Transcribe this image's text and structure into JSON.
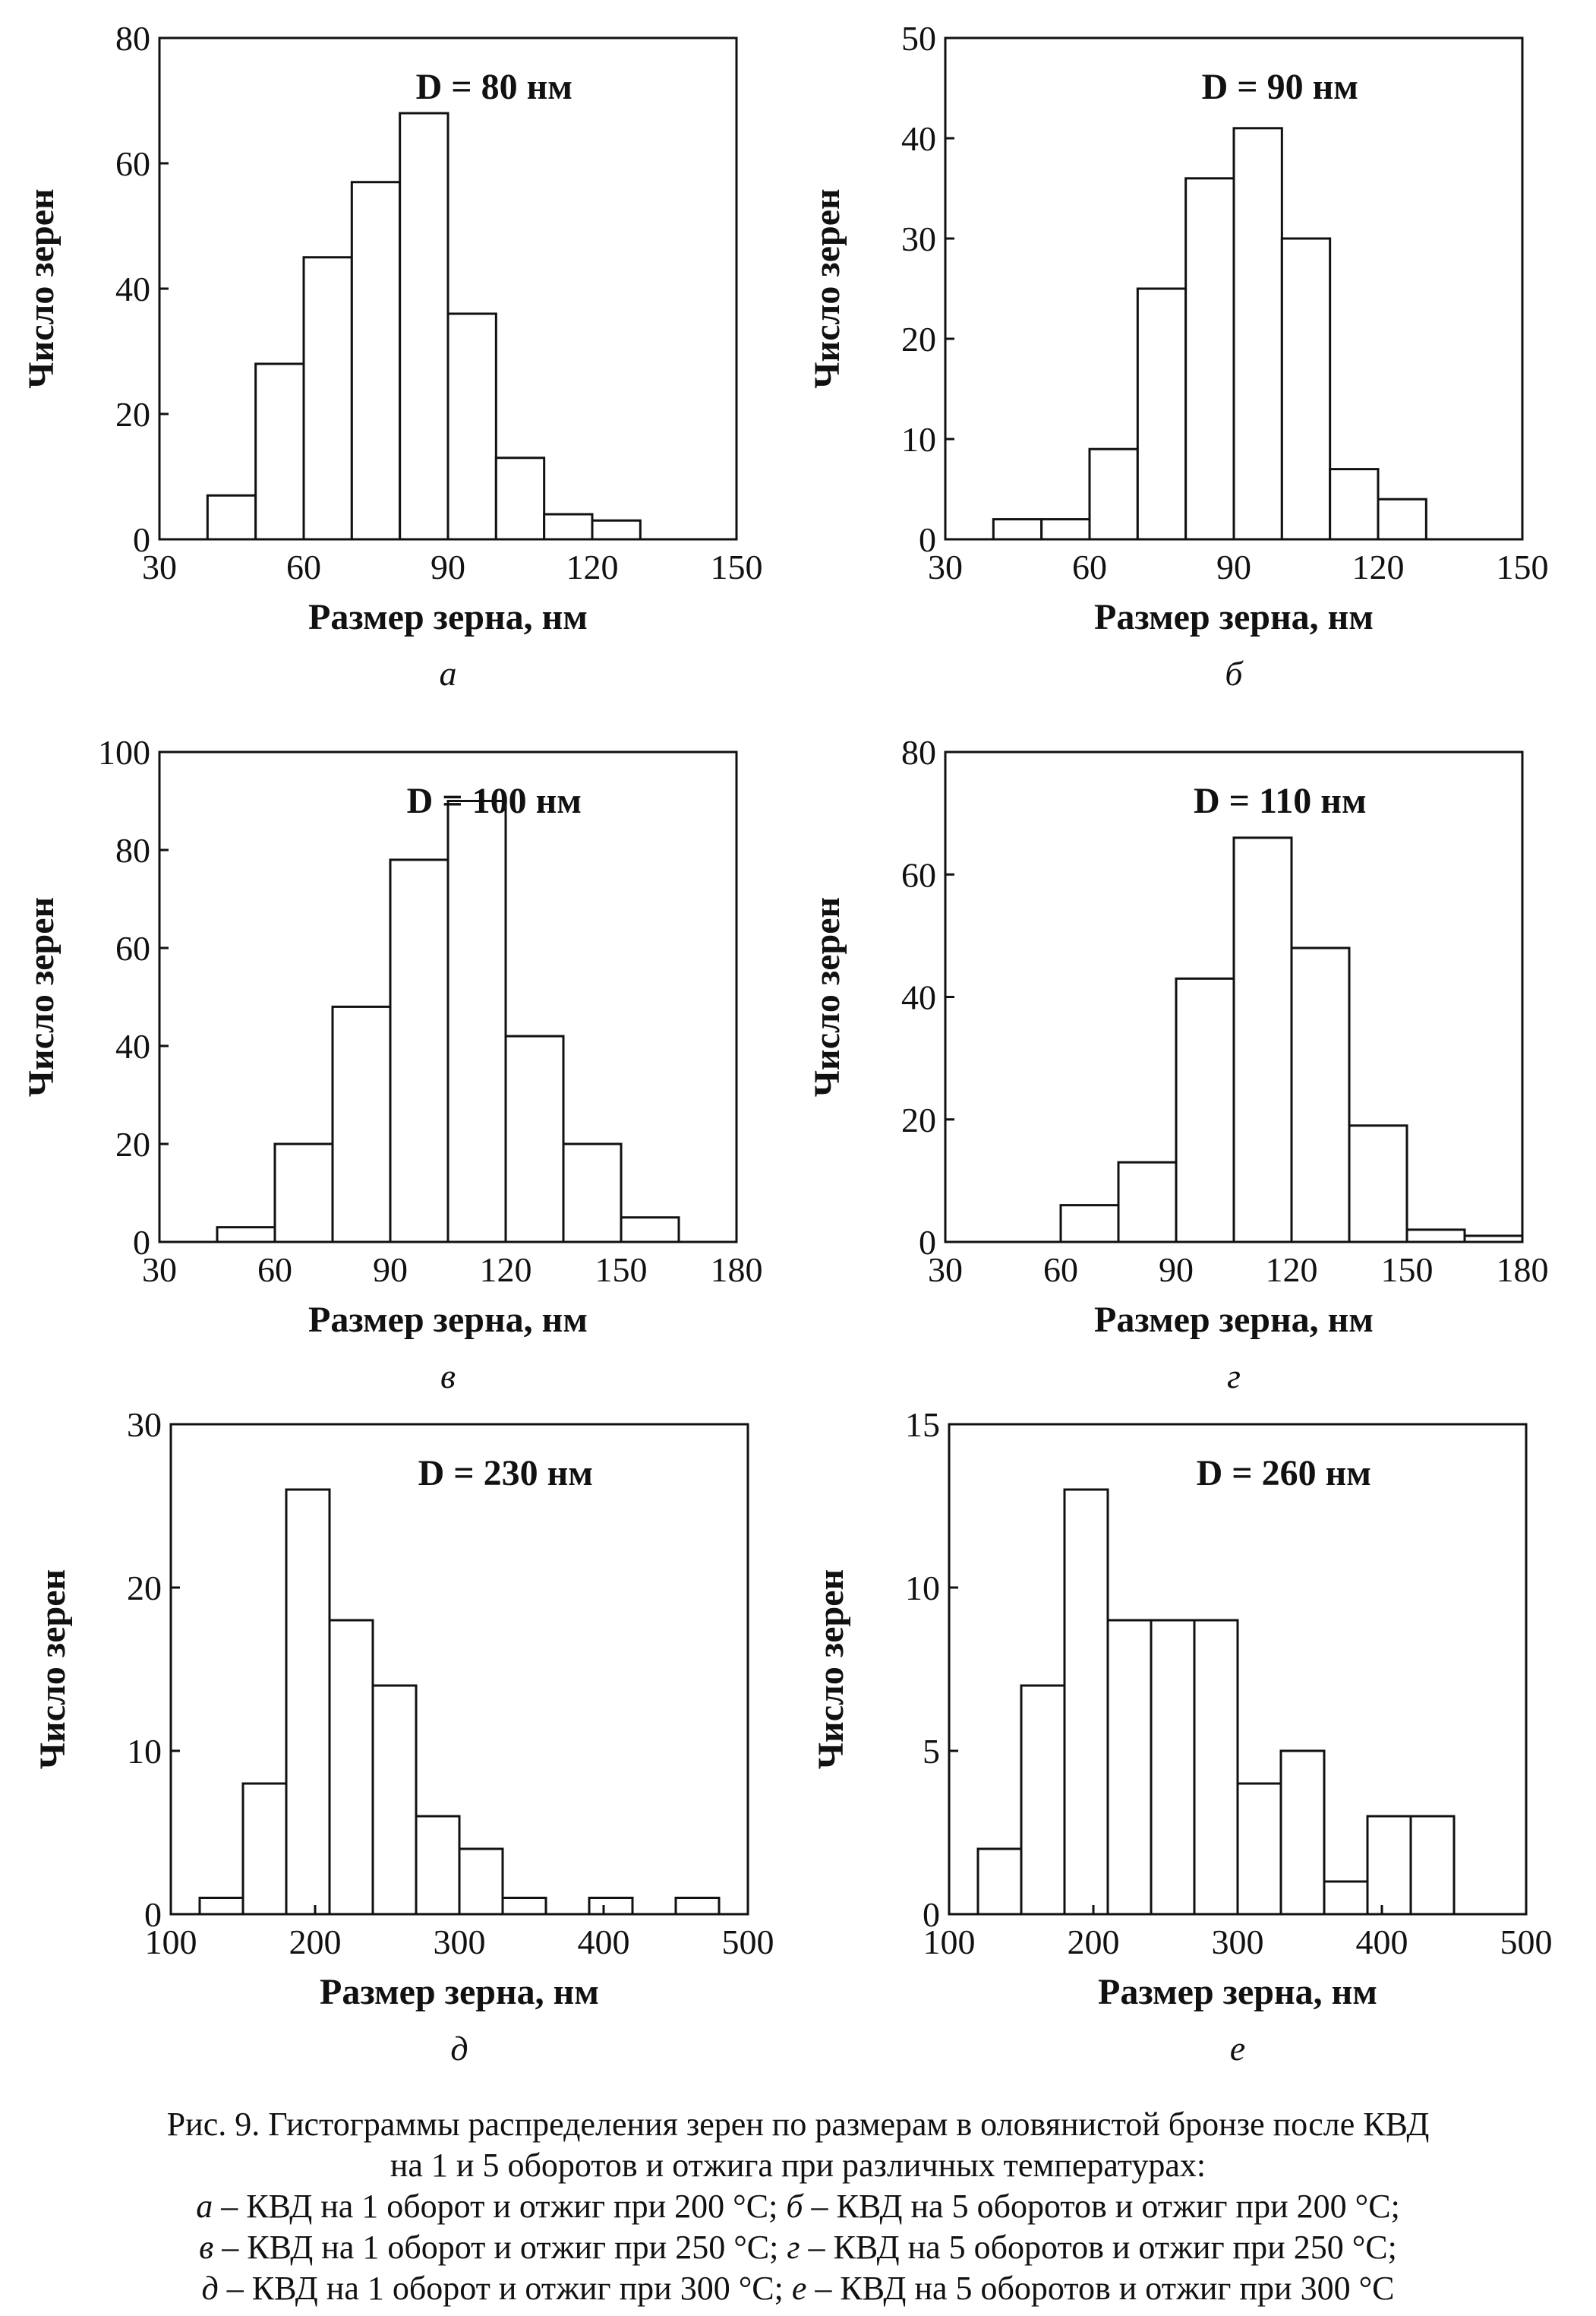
{
  "chart_data": [
    {
      "type": "bar",
      "panel": "а",
      "annotation": "D = 80 нм",
      "xlabel": "Размер зерна, нм",
      "ylabel": "Число зерен",
      "bin_width": 10,
      "bin_starts": [
        40,
        50,
        60,
        70,
        80,
        90,
        100,
        110,
        120
      ],
      "values": [
        7,
        28,
        45,
        57,
        68,
        36,
        13,
        4,
        3
      ],
      "xlim": [
        30,
        150
      ],
      "ylim": [
        0,
        80
      ],
      "xticks": [
        30,
        60,
        90,
        120,
        150
      ],
      "yticks": [
        0,
        20,
        40,
        60,
        80
      ]
    },
    {
      "type": "bar",
      "panel": "б",
      "annotation": "D = 90 нм",
      "xlabel": "Размер зерна, нм",
      "ylabel": "Число зерен",
      "bin_width": 10,
      "bin_starts": [
        40,
        50,
        60,
        70,
        80,
        90,
        100,
        110,
        120
      ],
      "values": [
        2,
        2,
        9,
        25,
        36,
        41,
        30,
        7,
        4
      ],
      "xlim": [
        30,
        150
      ],
      "ylim": [
        0,
        50
      ],
      "xticks": [
        30,
        60,
        90,
        120,
        150
      ],
      "yticks": [
        0,
        10,
        20,
        30,
        40,
        50
      ]
    },
    {
      "type": "bar",
      "panel": "в",
      "annotation": "D = 100 нм",
      "xlabel": "Размер зерна, нм",
      "ylabel": "Число зерен",
      "bin_width": 15,
      "bin_starts": [
        45,
        60,
        75,
        90,
        105,
        120,
        135,
        150
      ],
      "values": [
        3,
        20,
        48,
        78,
        90,
        42,
        20,
        5
      ],
      "xlim": [
        30,
        180
      ],
      "ylim": [
        0,
        100
      ],
      "xticks": [
        30,
        60,
        90,
        120,
        150,
        180
      ],
      "yticks": [
        0,
        20,
        40,
        60,
        80,
        100
      ]
    },
    {
      "type": "bar",
      "panel": "г",
      "annotation": "D = 110 нм",
      "xlabel": "Размер зерна, нм",
      "ylabel": "Число зерен",
      "bin_width": 15,
      "bin_starts": [
        60,
        75,
        90,
        105,
        120,
        135,
        150,
        165
      ],
      "values": [
        6,
        13,
        43,
        66,
        48,
        19,
        2,
        1
      ],
      "xlim": [
        30,
        180
      ],
      "ylim": [
        0,
        80
      ],
      "xticks": [
        30,
        60,
        90,
        120,
        150,
        180
      ],
      "yticks": [
        0,
        20,
        40,
        60,
        80
      ]
    },
    {
      "type": "bar",
      "panel": "д",
      "annotation": "D = 230 нм",
      "xlabel": "Размер зерна, нм",
      "ylabel": "Число зерен",
      "bin_width": 30,
      "bin_starts": [
        120,
        150,
        180,
        210,
        240,
        270,
        300,
        330,
        360,
        390,
        420,
        450
      ],
      "values": [
        1,
        8,
        26,
        18,
        14,
        6,
        4,
        1,
        0,
        1,
        0,
        1
      ],
      "xlim": [
        100,
        500
      ],
      "ylim": [
        0,
        30
      ],
      "xticks": [
        100,
        200,
        300,
        400,
        500
      ],
      "yticks": [
        0,
        10,
        20,
        30
      ]
    },
    {
      "type": "bar",
      "panel": "е",
      "annotation": "D = 260 нм",
      "xlabel": "Размер зерна, нм",
      "ylabel": "Число зерен",
      "bin_width": 30,
      "bin_starts": [
        120,
        150,
        180,
        210,
        240,
        270,
        300,
        330,
        360,
        390,
        420
      ],
      "values": [
        2,
        7,
        13,
        9,
        9,
        9,
        4,
        5,
        1,
        3,
        3
      ],
      "xlim": [
        100,
        500
      ],
      "ylim": [
        0,
        15
      ],
      "xticks": [
        100,
        200,
        300,
        400,
        500
      ],
      "yticks": [
        0,
        5,
        10,
        15
      ]
    }
  ],
  "caption": {
    "line1": "Рис. 9. Гистограммы распределения зерен по размерам в оловянистой бронзе после КВД",
    "line2": "на 1 и 5 оборотов и отжига при различных температурах:",
    "items": [
      {
        "letter": "а",
        "text": " – КВД на 1 оборот и отжиг при 200 °С; "
      },
      {
        "letter": "б",
        "text": " – КВД на 5 оборотов и отжиг при 200 °С;"
      },
      {
        "letter": "в",
        "text": " – КВД на 1 оборот и отжиг при 250 °С; "
      },
      {
        "letter": "г",
        "text": " – КВД на 5 оборотов и отжиг при 250 °С;"
      },
      {
        "letter": "д",
        "text": " – КВД на 1 оборот и отжиг при 300 °С; "
      },
      {
        "letter": "е",
        "text": " – КВД на 5 оборотов и отжиг при 300 °С"
      }
    ]
  }
}
